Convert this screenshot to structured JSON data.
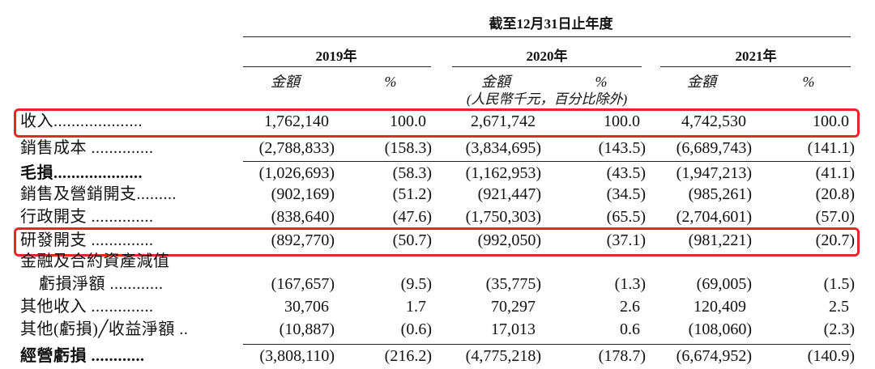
{
  "header": {
    "period": "截至12月31日止年度",
    "years": [
      "2019年",
      "2020年",
      "2021年"
    ],
    "subheaders": [
      "金額",
      "%",
      "金額",
      "%",
      "金額",
      "%"
    ],
    "unit": "(人民幣千元，百分比除外)"
  },
  "table": {
    "rows": [
      {
        "label": "收入....................",
        "values": [
          "1,762,140",
          "100.0",
          "2,671,742",
          "100.0",
          "4,742,530",
          "100.0"
        ]
      },
      {
        "label": "銷售成本 ..............",
        "values": [
          "(2,788,833)",
          "(158.3)",
          "(3,834,695)",
          "(143.5)",
          "(6,689,743)",
          "(141.1)"
        ]
      },
      {
        "label": "毛損....................",
        "bold": true,
        "values": [
          "(1,026,693)",
          "(58.3)",
          "(1,162,953)",
          "(43.5)",
          "(1,947,213)",
          "(41.1)"
        ]
      },
      {
        "label": "銷售及營銷開支.........",
        "values": [
          "(902,169)",
          "(51.2)",
          "(921,447)",
          "(34.5)",
          "(985,261)",
          "(20.8)"
        ]
      },
      {
        "label": "行政開支 ..............",
        "values": [
          "(838,640)",
          "(47.6)",
          "(1,750,303)",
          "(65.5)",
          "(2,704,601)",
          "(57.0)"
        ]
      },
      {
        "label": "研發開支 ..............",
        "values": [
          "(892,770)",
          "(50.7)",
          "(992,050)",
          "(37.1)",
          "(981,221)",
          "(20.7)"
        ]
      },
      {
        "label": "金融及合約資產減值",
        "values": []
      },
      {
        "label": "虧損淨額 ............",
        "indent": true,
        "values": [
          "(167,657)",
          "(9.5)",
          "(35,775)",
          "(1.3)",
          "(69,005)",
          "(1.5)"
        ]
      },
      {
        "label": "其他收入 ..............",
        "values": [
          "30,706",
          "1.7",
          "70,297",
          "2.6",
          "120,409",
          "2.5"
        ]
      },
      {
        "label": "其他(虧損)╱收益淨額 ..",
        "values": [
          "(10,887)",
          "(0.6)",
          "17,013",
          "0.6",
          "(108,060)",
          "(2.3)"
        ]
      },
      {
        "label": "經營虧損 ............",
        "bold": true,
        "values": [
          "(3,808,110)",
          "(216.2)",
          "(4,775,218)",
          "(178.7)",
          "(6,674,952)",
          "(140.9)"
        ]
      }
    ]
  }
}
